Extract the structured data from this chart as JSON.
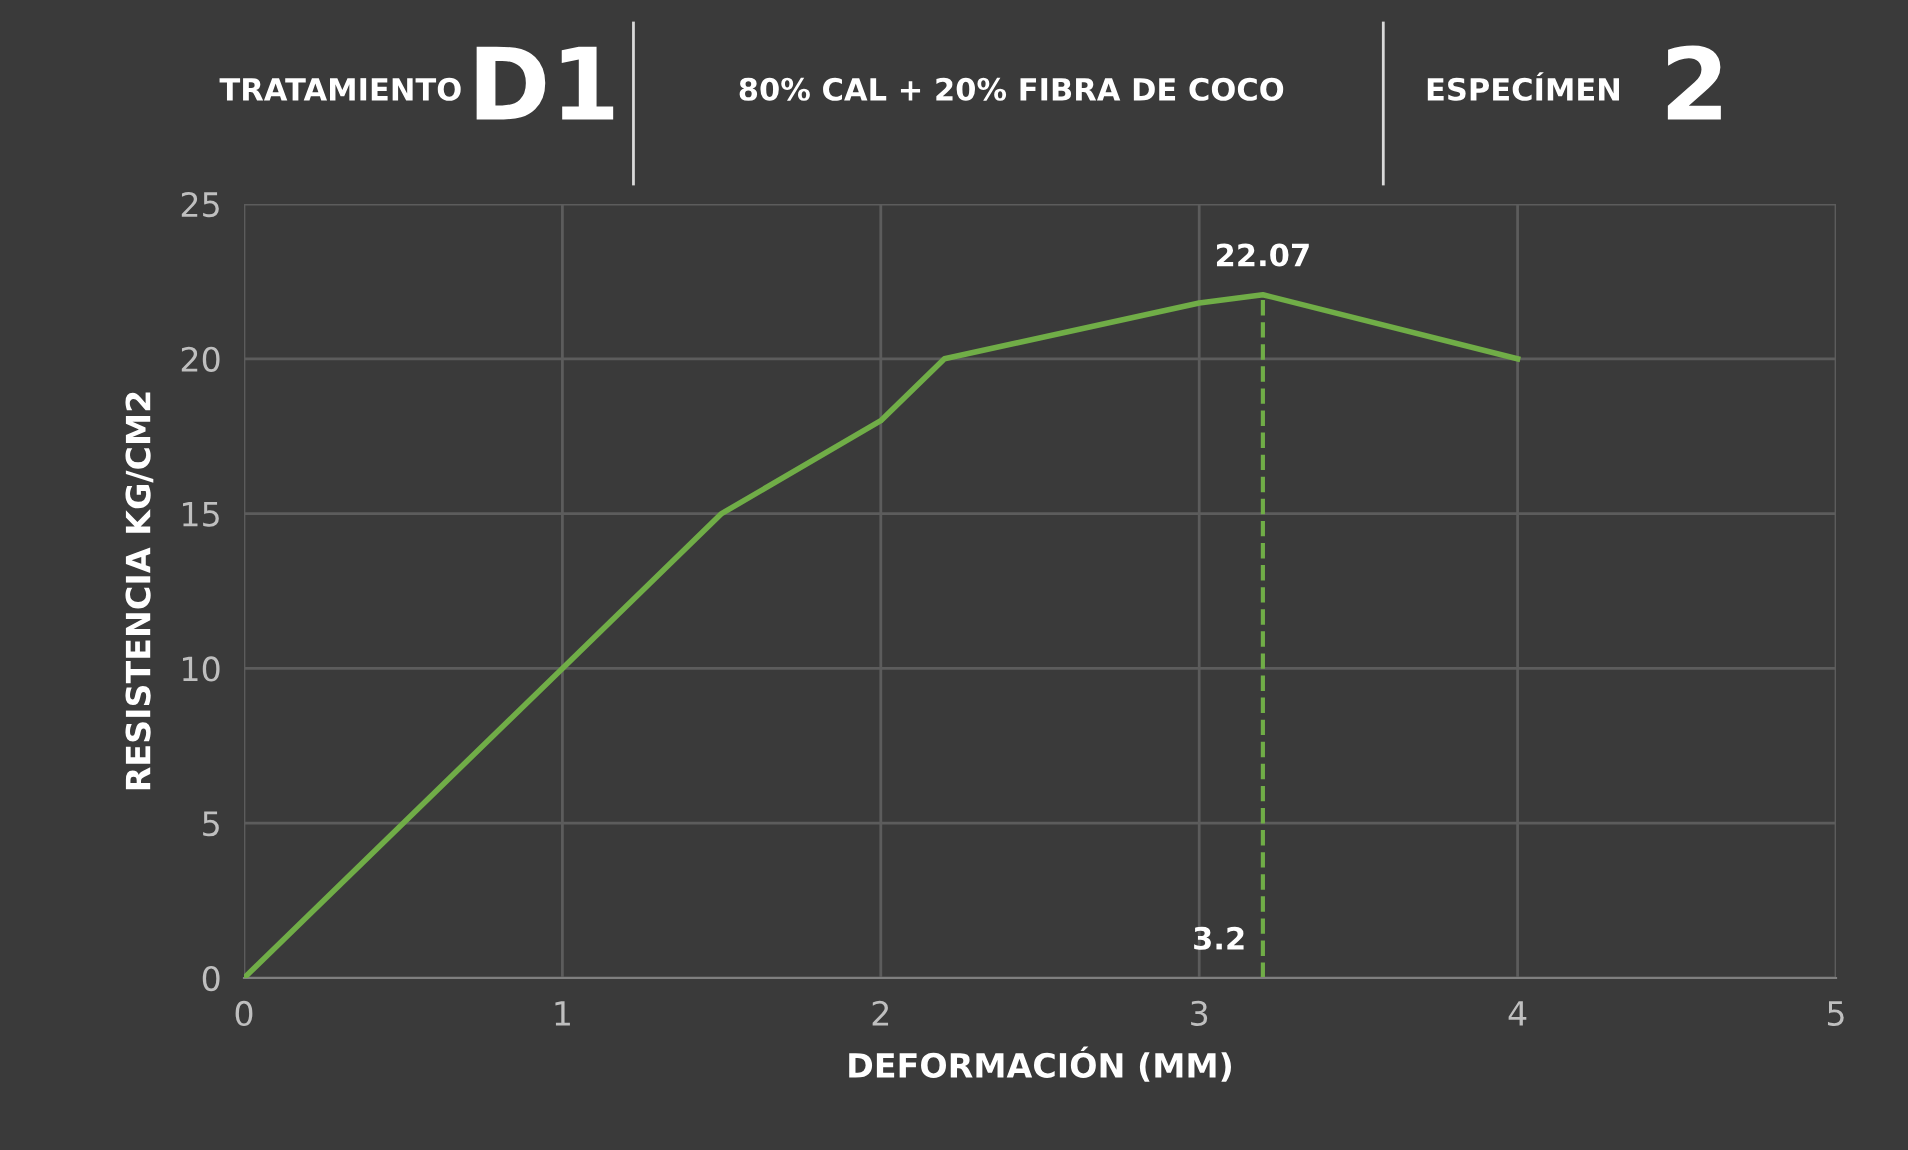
{
  "chart_data": {
    "type": "line",
    "xlabel": "DEFORMACIÓN (MM)",
    "ylabel": "RESISTENCIA KG/CM2",
    "x": [
      0,
      1,
      1.5,
      2,
      2.2,
      3,
      3.2,
      4
    ],
    "series": [
      {
        "color": "#70ad47",
        "values": [
          0,
          10,
          15,
          18,
          20,
          21.8,
          22.07,
          20
        ]
      }
    ],
    "xlim": [
      0,
      5
    ],
    "xticks": [
      0,
      1,
      2,
      3,
      4,
      5
    ],
    "ylim": [
      0,
      25
    ],
    "yticks": [
      0,
      5,
      10,
      15,
      20,
      25
    ],
    "grid": true,
    "marker": "none",
    "line_style": "solid",
    "ref_lines": [
      {
        "axis": "x",
        "value": 3.2,
        "color": "#70ad47",
        "line_style": "dashed"
      }
    ],
    "annotations": [
      "TRATAMIENTO",
      "D1",
      "80% CAL + 20% FIBRA DE COCO",
      "ESPECÍMEN",
      "2",
      {
        "text": "22.07",
        "x": 3.2,
        "y": 22.07
      },
      {
        "text": "3.2",
        "x": 3.2,
        "y": 0
      }
    ]
  }
}
